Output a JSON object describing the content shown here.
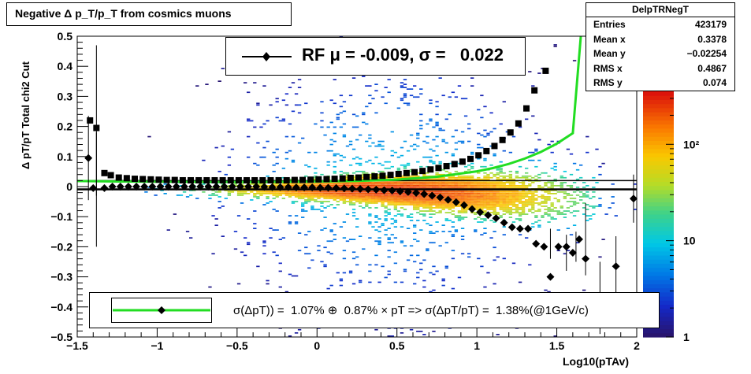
{
  "title": "Negative Δ p_T/p_T from cosmics muons",
  "stats": {
    "name": "DelpTRNegT",
    "rows": [
      {
        "key": "Entries",
        "value": "423179"
      },
      {
        "key": "Mean x",
        "value": "0.3378"
      },
      {
        "key": "Mean y",
        "value": "−0.02254"
      },
      {
        "key": "RMS x",
        "value": "0.4867"
      },
      {
        "key": "RMS y",
        "value": "0.074"
      }
    ]
  },
  "legend": {
    "rf_text": "RF μ = -0.009, σ =   0.022",
    "sigma_text": "σ(ΔpT)) =  1.07% ⊕  0.87% × pT => σ(ΔpT/pT) =  1.38%(@1GeV/c)"
  },
  "colors": {
    "fit_line": "#22dd22",
    "points": "#000000"
  },
  "chart_data": {
    "type": "heatmap",
    "title": "Negative Δ p_T/p_T from cosmics muons",
    "xlabel": "Log10(pTAv)",
    "ylabel": "Δ pT/pT   Total chi2 Cut",
    "xlim": [
      -1.5,
      2.0
    ],
    "ylim": [
      -0.5,
      0.5
    ],
    "x_ticks": [
      "−1.5",
      "−1",
      "−0.5",
      "0",
      "0.5",
      "1",
      "1.5",
      "2"
    ],
    "y_ticks": [
      "−0.5",
      "−0.4",
      "−0.3",
      "−0.2",
      "−0.1",
      "0",
      "0.1",
      "0.2",
      "0.3",
      "0.4",
      "0.5"
    ],
    "z_scale": "log",
    "z_ticks": [
      "1",
      "10",
      "10²"
    ],
    "rms_series": {
      "x": [
        -1.42,
        -1.38,
        -1.33,
        -1.29,
        -1.24,
        -1.19,
        -1.14,
        -1.09,
        -1.04,
        -0.99,
        -0.94,
        -0.89,
        -0.84,
        -0.79,
        -0.74,
        -0.69,
        -0.64,
        -0.59,
        -0.54,
        -0.49,
        -0.44,
        -0.39,
        -0.34,
        -0.29,
        -0.24,
        -0.19,
        -0.14,
        -0.09,
        -0.04,
        0.01,
        0.06,
        0.11,
        0.16,
        0.21,
        0.26,
        0.31,
        0.36,
        0.41,
        0.46,
        0.51,
        0.56,
        0.61,
        0.66,
        0.71,
        0.76,
        0.81,
        0.86,
        0.91,
        0.96,
        1.01,
        1.06,
        1.11,
        1.16,
        1.21,
        1.26,
        1.31,
        1.36,
        1.43
      ],
      "y": [
        0.22,
        0.195,
        0.045,
        0.038,
        0.03,
        0.028,
        0.026,
        0.025,
        0.024,
        0.023,
        0.022,
        0.022,
        0.021,
        0.021,
        0.021,
        0.021,
        0.021,
        0.021,
        0.021,
        0.021,
        0.021,
        0.021,
        0.021,
        0.021,
        0.021,
        0.021,
        0.022,
        0.022,
        0.023,
        0.024,
        0.025,
        0.026,
        0.027,
        0.029,
        0.03,
        0.032,
        0.034,
        0.036,
        0.039,
        0.042,
        0.045,
        0.048,
        0.052,
        0.057,
        0.062,
        0.068,
        0.075,
        0.083,
        0.092,
        0.104,
        0.118,
        0.135,
        0.155,
        0.18,
        0.21,
        0.26,
        0.32,
        0.385
      ]
    },
    "mean_series": {
      "x": [
        -1.43,
        -1.4,
        -1.33,
        -1.28,
        -1.23,
        -1.18,
        -1.13,
        -1.08,
        -1.03,
        -0.98,
        -0.93,
        -0.88,
        -0.83,
        -0.78,
        -0.73,
        -0.68,
        -0.63,
        -0.58,
        -0.53,
        -0.48,
        -0.43,
        -0.38,
        -0.33,
        -0.28,
        -0.23,
        -0.18,
        -0.13,
        -0.08,
        -0.03,
        0.02,
        0.07,
        0.12,
        0.17,
        0.22,
        0.27,
        0.32,
        0.37,
        0.42,
        0.47,
        0.52,
        0.57,
        0.62,
        0.67,
        0.72,
        0.77,
        0.82,
        0.87,
        0.92,
        0.97,
        1.02,
        1.07,
        1.12,
        1.17,
        1.22,
        1.27,
        1.32,
        1.37,
        1.42,
        1.46,
        1.51,
        1.56,
        1.6,
        1.64,
        1.68,
        1.77,
        1.87,
        1.98
      ],
      "y": [
        0.095,
        -0.005,
        -0.005,
        0.0,
        0.0,
        0.0,
        0.0,
        0.0,
        0.0,
        0.0,
        0.0,
        0.0,
        0.0,
        0.0,
        0.0,
        0.0,
        0.0,
        0.0,
        0.0,
        0.0,
        0.0,
        0.0,
        -0.001,
        -0.002,
        -0.002,
        -0.002,
        -0.003,
        -0.003,
        -0.003,
        -0.004,
        -0.004,
        -0.005,
        -0.006,
        -0.007,
        -0.008,
        -0.009,
        -0.01,
        -0.012,
        -0.013,
        -0.016,
        -0.018,
        -0.021,
        -0.025,
        -0.03,
        -0.036,
        -0.044,
        -0.052,
        -0.062,
        -0.075,
        -0.085,
        -0.095,
        -0.105,
        -0.12,
        -0.135,
        -0.14,
        -0.14,
        -0.19,
        -0.2,
        -0.3,
        -0.2,
        -0.2,
        -0.22,
        -0.175,
        -0.24,
        -0.37,
        -0.265,
        -0.04
      ]
    },
    "fit_curve": {
      "x": [
        -1.5,
        -1.25,
        -1.0,
        -0.75,
        -0.5,
        -0.25,
        0.0,
        0.25,
        0.5,
        0.75,
        1.0,
        1.1,
        1.2,
        1.3,
        1.4,
        1.5,
        1.6,
        1.65
      ],
      "y": [
        0.0186,
        0.017,
        0.0161,
        0.0156,
        0.0155,
        0.0159,
        0.0168,
        0.0189,
        0.0234,
        0.0326,
        0.0507,
        0.0616,
        0.0755,
        0.0931,
        0.1153,
        0.143,
        0.1777,
        0.499
      ]
    }
  }
}
